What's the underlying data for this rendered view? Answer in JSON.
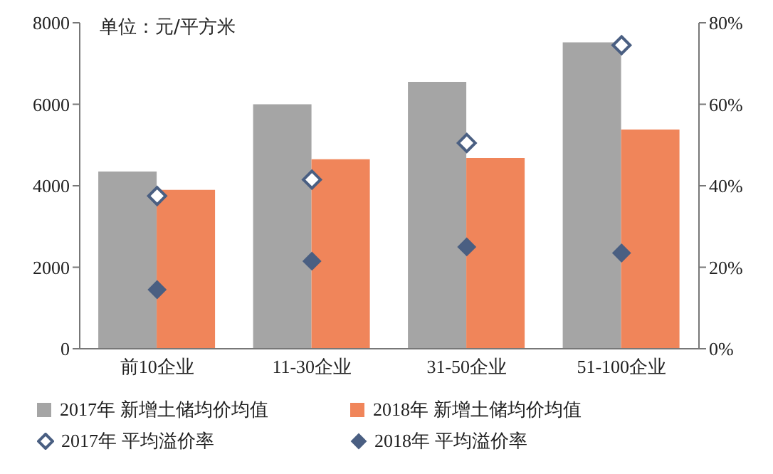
{
  "chart_data": {
    "type": "bar",
    "categories": [
      "前10企业",
      "11-30企业",
      "31-50企业",
      "51-100企业"
    ],
    "series": [
      {
        "name": "2017年 新增土储均价均值",
        "color": "#a5a5a5",
        "values": [
          4350,
          6000,
          6550,
          7520
        ]
      },
      {
        "name": "2018年 新增土储均价均值",
        "color": "#f0855a",
        "values": [
          3900,
          4650,
          4680,
          5380
        ]
      },
      {
        "name": "2017年 平均溢价率",
        "type": "scatter",
        "axis": "y2",
        "marker": "diamond",
        "color": "#4a5f82",
        "values": [
          37.5,
          41.5,
          50.5,
          74.5
        ]
      },
      {
        "name": "2018年 平均溢价率",
        "type": "scatter",
        "axis": "y2",
        "marker": "diamond",
        "color": "#4a5f82",
        "values": [
          14.5,
          21.5,
          25,
          23.5
        ]
      }
    ],
    "ylim": [
      0,
      8000
    ],
    "yticks": [
      0,
      2000,
      4000,
      6000,
      8000
    ],
    "y2lim": [
      0,
      80
    ],
    "y2ticks": [
      {
        "value": 0,
        "label": "0%"
      },
      {
        "value": 20,
        "label": "20%"
      },
      {
        "value": 40,
        "label": "40%"
      },
      {
        "value": 60,
        "label": "60%"
      },
      {
        "value": 80,
        "label": "80%"
      }
    ],
    "annotations": [
      "单位：元/平方米"
    ],
    "legend": "bottom",
    "grid": false
  }
}
